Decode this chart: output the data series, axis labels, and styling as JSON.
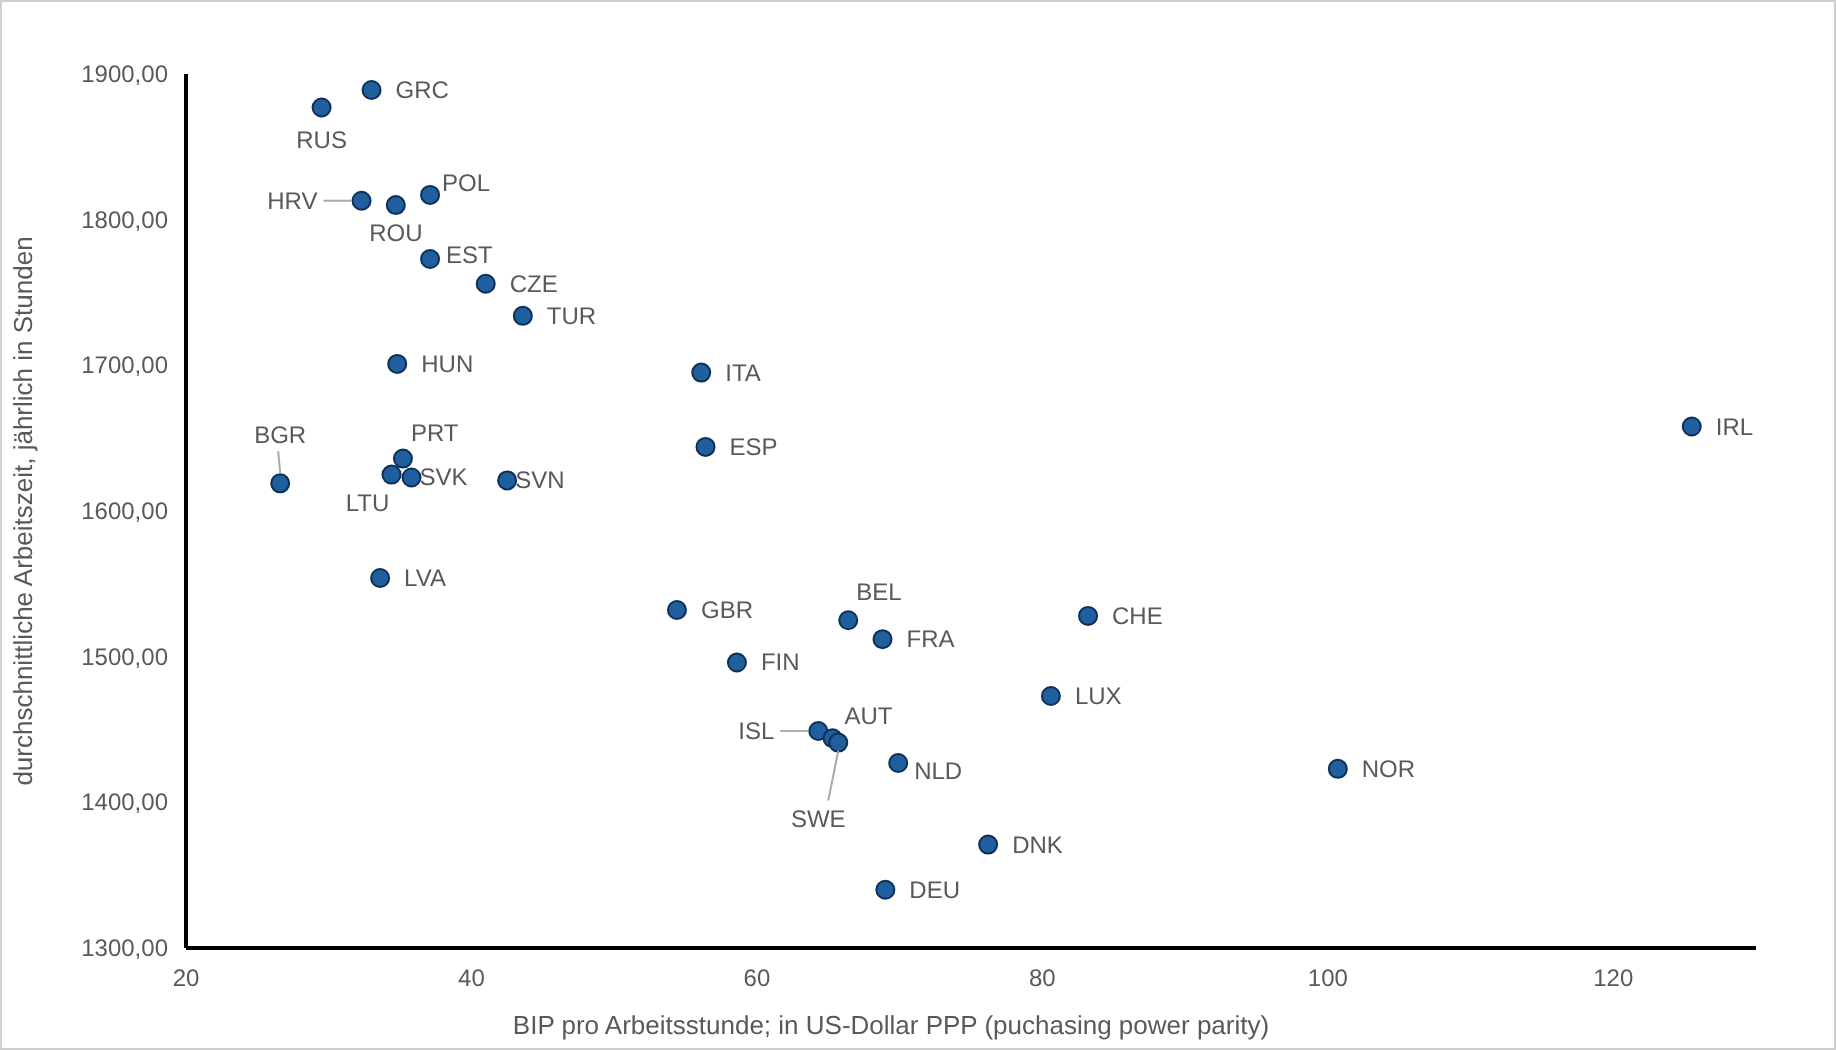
{
  "chart_data": {
    "type": "scatter",
    "xlabel": "BIP pro Arbeitsstunde; in US-Dollar PPP (puchasing power parity)",
    "ylabel": "durchschnittliche Arbeitszeit, jährlich in Stunden",
    "xlim": [
      20,
      130
    ],
    "xticks": [
      20,
      40,
      60,
      80,
      100,
      120
    ],
    "ylim": [
      1300,
      1900
    ],
    "yticks": [
      {
        "value": 1300,
        "label": "1300,00"
      },
      {
        "value": 1400,
        "label": "1400,00"
      },
      {
        "value": 1500,
        "label": "1500,00"
      },
      {
        "value": 1600,
        "label": "1600,00"
      },
      {
        "value": 1700,
        "label": "1700,00"
      },
      {
        "value": 1800,
        "label": "1800,00"
      },
      {
        "value": 1900,
        "label": "1900,00"
      }
    ],
    "grid": false,
    "marker": "circle",
    "series": [
      {
        "color": "#1f5f9e",
        "x": [
          33.0,
          29.5,
          37.1,
          32.3,
          34.7,
          37.1,
          41.0,
          43.6,
          34.8,
          56.1,
          56.4,
          125.5,
          26.6,
          35.2,
          34.4,
          35.8,
          42.5,
          33.6,
          54.4,
          66.4,
          83.2,
          68.8,
          58.6,
          80.6,
          64.3,
          65.3,
          65.7,
          69.9,
          100.7,
          76.2,
          69.0
        ],
        "values": [
          1889,
          1877,
          1817,
          1813,
          1810,
          1773,
          1756,
          1734,
          1701,
          1695,
          1644,
          1658,
          1619,
          1636,
          1625,
          1623,
          1621,
          1554,
          1532,
          1525,
          1528,
          1512,
          1496,
          1473,
          1449,
          1444,
          1441,
          1427,
          1423,
          1371,
          1340
        ]
      }
    ],
    "annotations": [
      {
        "text": "GRC",
        "x": 33.0,
        "y": 1889
      },
      {
        "text": "RUS",
        "x": 29.5,
        "y": 1877
      },
      {
        "text": "POL",
        "x": 37.1,
        "y": 1817
      },
      {
        "text": "HRV",
        "x": 32.3,
        "y": 1813
      },
      {
        "text": "ROU",
        "x": 34.7,
        "y": 1810
      },
      {
        "text": "EST",
        "x": 37.1,
        "y": 1773
      },
      {
        "text": "CZE",
        "x": 41.0,
        "y": 1756
      },
      {
        "text": "TUR",
        "x": 43.6,
        "y": 1734
      },
      {
        "text": "HUN",
        "x": 34.8,
        "y": 1701
      },
      {
        "text": "ITA",
        "x": 56.1,
        "y": 1695
      },
      {
        "text": "ESP",
        "x": 56.4,
        "y": 1644
      },
      {
        "text": "IRL",
        "x": 125.5,
        "y": 1658
      },
      {
        "text": "BGR",
        "x": 26.6,
        "y": 1619
      },
      {
        "text": "PRT",
        "x": 35.2,
        "y": 1636
      },
      {
        "text": "LTU",
        "x": 34.4,
        "y": 1625
      },
      {
        "text": "SVK",
        "x": 35.8,
        "y": 1623
      },
      {
        "text": "SVN",
        "x": 42.5,
        "y": 1621
      },
      {
        "text": "LVA",
        "x": 33.6,
        "y": 1554
      },
      {
        "text": "GBR",
        "x": 54.4,
        "y": 1532
      },
      {
        "text": "BEL",
        "x": 66.4,
        "y": 1525
      },
      {
        "text": "CHE",
        "x": 83.2,
        "y": 1528
      },
      {
        "text": "FRA",
        "x": 68.8,
        "y": 1512
      },
      {
        "text": "FIN",
        "x": 58.6,
        "y": 1496
      },
      {
        "text": "LUX",
        "x": 80.6,
        "y": 1473
      },
      {
        "text": "ISL",
        "x": 64.3,
        "y": 1449
      },
      {
        "text": "AUT",
        "x": 65.3,
        "y": 1444
      },
      {
        "text": "SWE",
        "x": 65.7,
        "y": 1441
      },
      {
        "text": "NLD",
        "x": 69.9,
        "y": 1427
      },
      {
        "text": "NOR",
        "x": 100.7,
        "y": 1423
      },
      {
        "text": "DNK",
        "x": 76.2,
        "y": 1371
      },
      {
        "text": "DEU",
        "x": 69.0,
        "y": 1340
      }
    ]
  }
}
